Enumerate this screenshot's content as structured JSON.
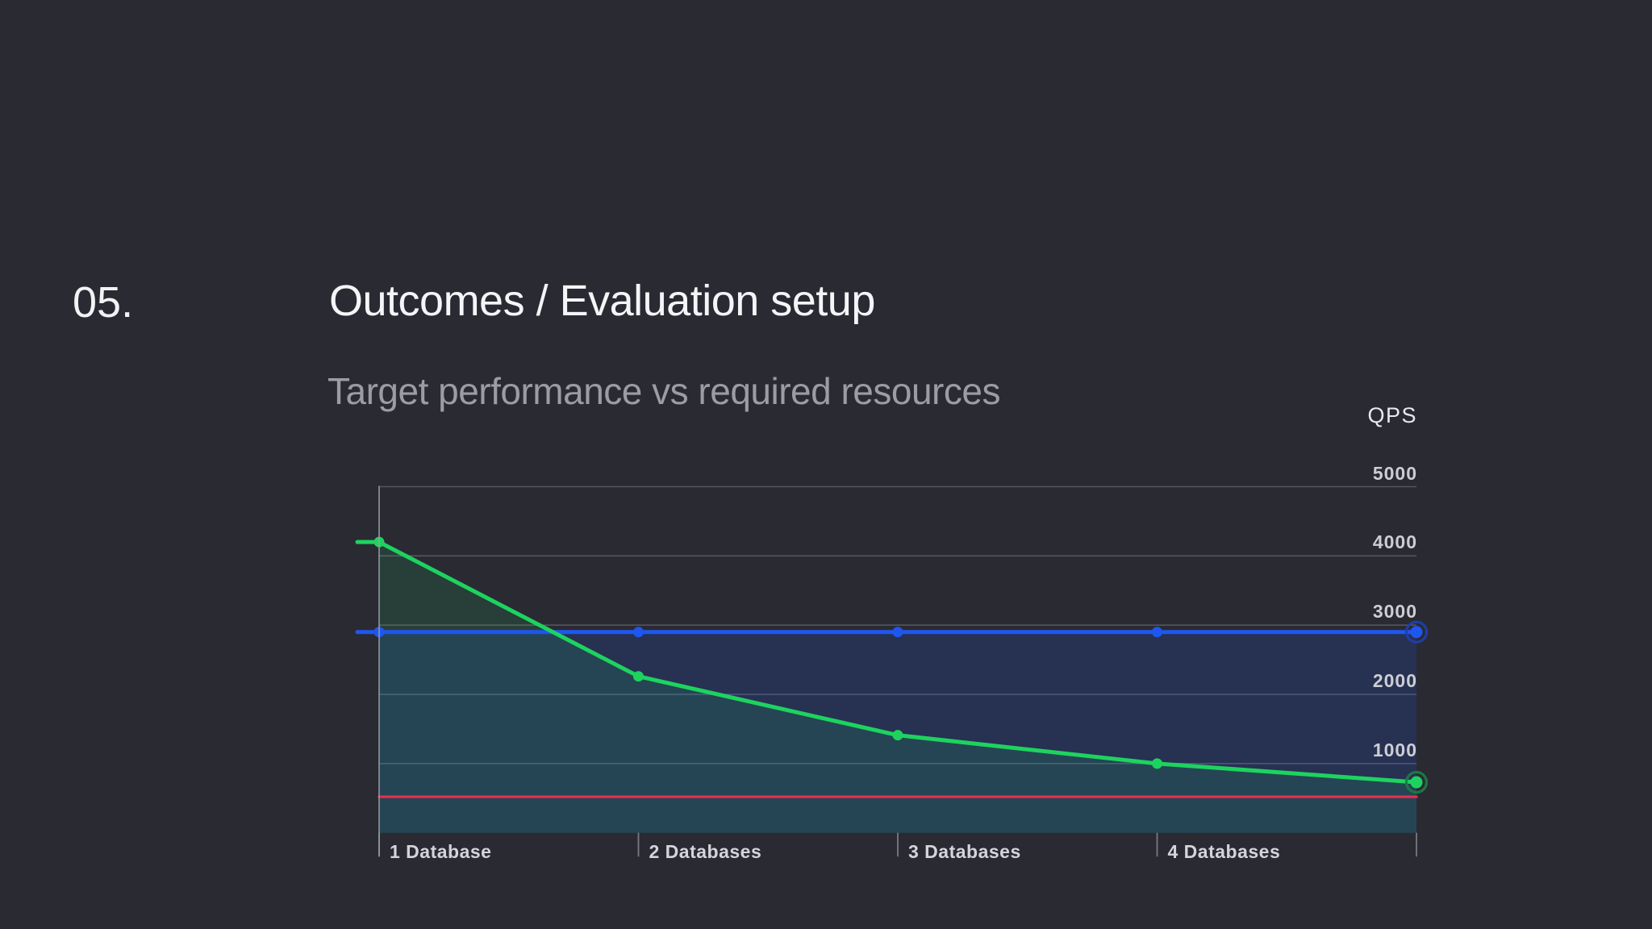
{
  "slide": {
    "section_number": "05.",
    "title": "Outcomes / Evaluation setup",
    "subtitle": "Target performance vs required resources"
  },
  "chart_data": {
    "type": "line",
    "title": "Target performance vs required resources",
    "xlabel": "",
    "ylabel": "QPS",
    "categories": [
      "1 Database",
      "2 Databases",
      "3 Databases",
      "4 Databases",
      ""
    ],
    "y_ticks": [
      1000,
      2000,
      3000,
      4000,
      5000
    ],
    "ylim": [
      0,
      5000
    ],
    "grid": true,
    "legend_position": "none",
    "series": [
      {
        "id": "blue-constant-line",
        "type": "line+area",
        "color": "#1e56f0",
        "fill_color": "rgba(30,86,240,0.17)",
        "ring_color": "#1d3fae",
        "values": [
          2900,
          2900,
          2900,
          2900,
          2900
        ],
        "markers": true,
        "end_ring": true
      },
      {
        "id": "green-decreasing-line",
        "type": "line+area",
        "color": "#1dd35f",
        "fill_color": "rgba(29,211,95,0.12)",
        "ring_color": "#1a7c45",
        "values": [
          4200,
          2260,
          1410,
          1000,
          730
        ],
        "markers": true,
        "end_ring": true
      },
      {
        "id": "red-constant-line",
        "type": "line",
        "color": "#e92e50",
        "ring_color": "",
        "values": [
          520,
          520,
          520,
          520,
          520
        ],
        "markers": false,
        "end_ring": false
      }
    ],
    "style": {
      "background": "#2a2a33",
      "gridline_color": "#555560",
      "axis_color": "#9a9ba2",
      "y_label_color": "#cdced4",
      "x_label_color": "#d4d4d9"
    }
  }
}
